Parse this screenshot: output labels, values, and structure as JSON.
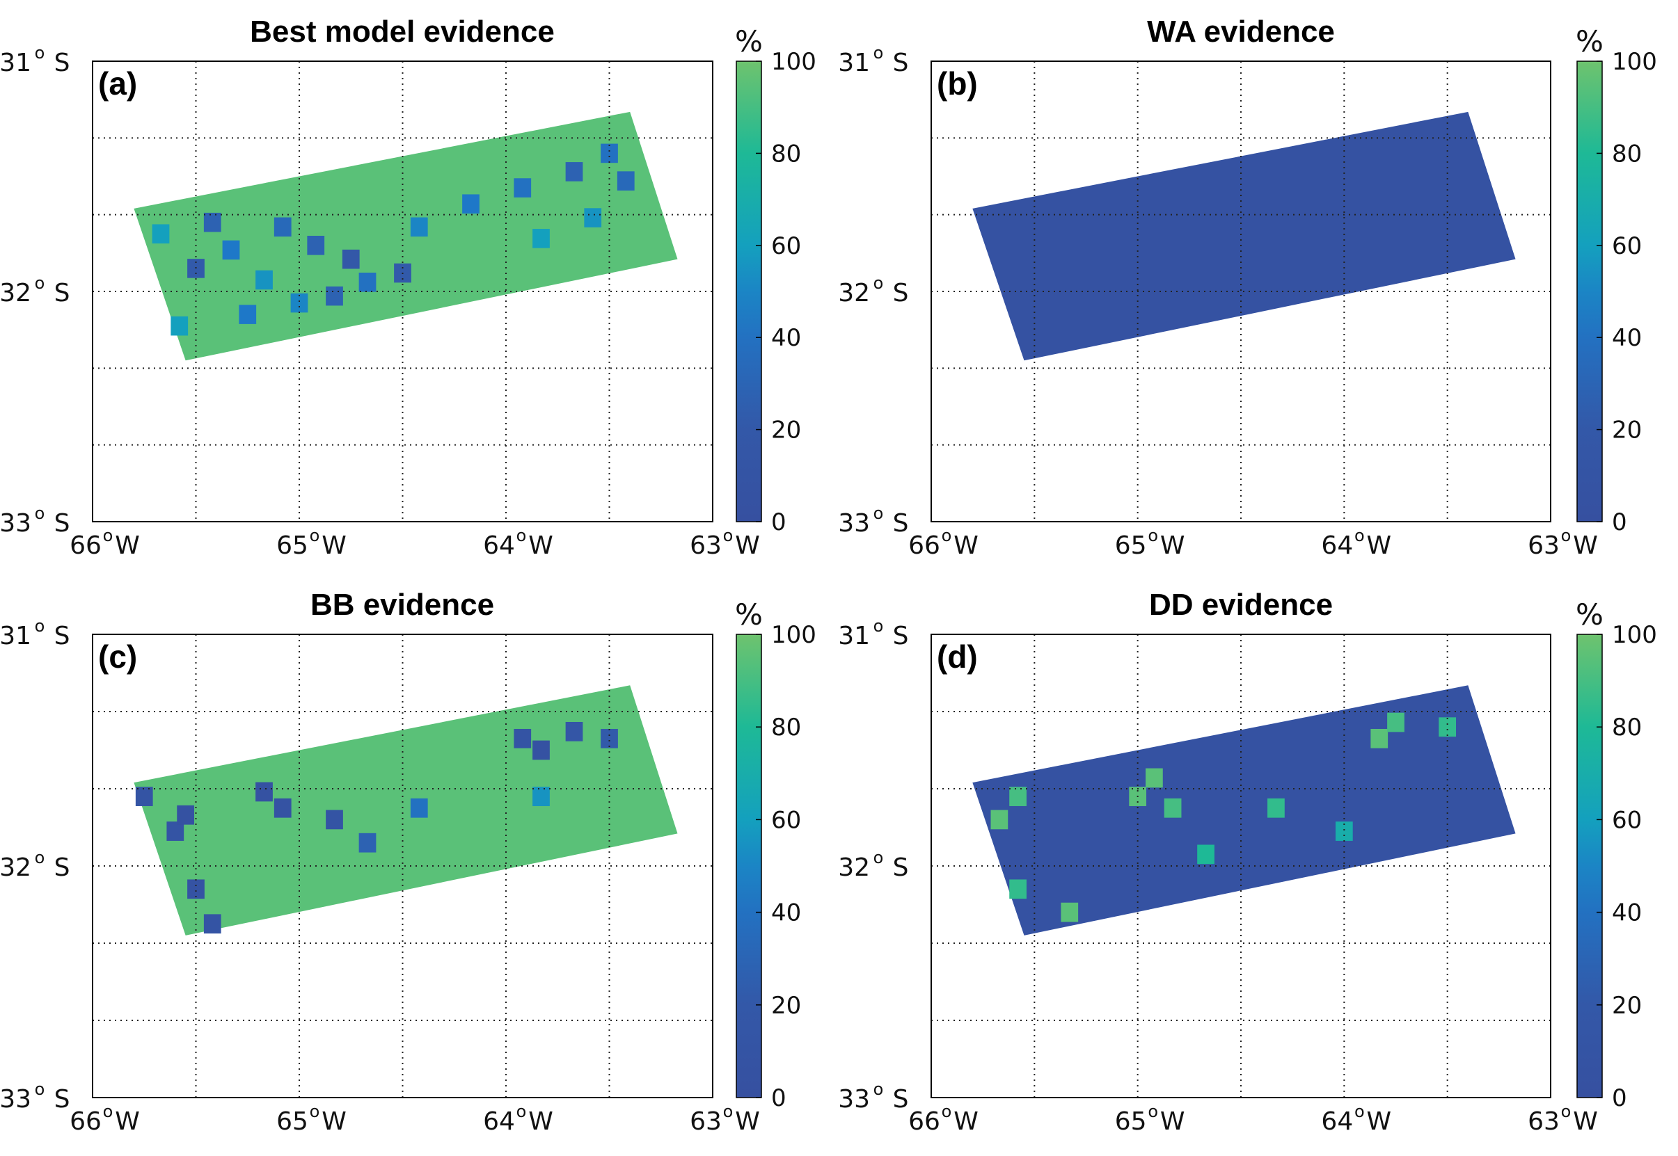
{
  "chart_data": [
    {
      "type": "heatmap",
      "panel_label": "(a)",
      "title": "Best model evidence",
      "xticks": [
        "66",
        "65",
        "64",
        "63"
      ],
      "xtick_suffix": "W",
      "yticks": [
        "31",
        "32",
        "33"
      ],
      "ytick_suffix": "S",
      "xlim": [
        -66,
        -63
      ],
      "ylim": [
        -33,
        -31
      ],
      "colorbar": {
        "unit": "%",
        "ticks": [
          "0",
          "20",
          "40",
          "60",
          "80",
          "100"
        ],
        "range": [
          0,
          100
        ]
      },
      "grid": true,
      "dominant_value": 95,
      "cells": [
        {
          "x": -65.67,
          "y": -31.75,
          "v": 60
        },
        {
          "x": -65.42,
          "y": -31.7,
          "v": 30
        },
        {
          "x": -65.33,
          "y": -31.82,
          "v": 45
        },
        {
          "x": -65.5,
          "y": -31.9,
          "v": 25
        },
        {
          "x": -65.17,
          "y": -31.95,
          "v": 55
        },
        {
          "x": -65.08,
          "y": -31.72,
          "v": 35
        },
        {
          "x": -64.92,
          "y": -31.8,
          "v": 30
        },
        {
          "x": -64.75,
          "y": -31.86,
          "v": 20
        },
        {
          "x": -64.67,
          "y": -31.96,
          "v": 40
        },
        {
          "x": -64.5,
          "y": -31.92,
          "v": 25
        },
        {
          "x": -64.42,
          "y": -31.72,
          "v": 50
        },
        {
          "x": -64.17,
          "y": -31.62,
          "v": 45
        },
        {
          "x": -63.92,
          "y": -31.55,
          "v": 40
        },
        {
          "x": -63.83,
          "y": -31.77,
          "v": 60
        },
        {
          "x": -63.67,
          "y": -31.48,
          "v": 30
        },
        {
          "x": -63.58,
          "y": -31.68,
          "v": 55
        },
        {
          "x": -63.5,
          "y": -31.4,
          "v": 40
        },
        {
          "x": -63.42,
          "y": -31.52,
          "v": 35
        },
        {
          "x": -65.58,
          "y": -32.15,
          "v": 60
        },
        {
          "x": -65.25,
          "y": -32.1,
          "v": 45
        },
        {
          "x": -65.0,
          "y": -32.05,
          "v": 50
        },
        {
          "x": -64.83,
          "y": -32.02,
          "v": 30
        }
      ]
    },
    {
      "type": "heatmap",
      "panel_label": "(b)",
      "title": "WA evidence",
      "xticks": [
        "66",
        "65",
        "64",
        "63"
      ],
      "xtick_suffix": "W",
      "yticks": [
        "31",
        "32",
        "33"
      ],
      "ytick_suffix": "S",
      "xlim": [
        -66,
        -63
      ],
      "ylim": [
        -33,
        -31
      ],
      "colorbar": {
        "unit": "%",
        "ticks": [
          "0",
          "20",
          "40",
          "60",
          "80",
          "100"
        ],
        "range": [
          0,
          100
        ]
      },
      "grid": true,
      "dominant_value": 5,
      "cells": []
    },
    {
      "type": "heatmap",
      "panel_label": "(c)",
      "title": "BB evidence",
      "xticks": [
        "66",
        "65",
        "64",
        "63"
      ],
      "xtick_suffix": "W",
      "yticks": [
        "31",
        "32",
        "33"
      ],
      "ytick_suffix": "S",
      "xlim": [
        -66,
        -63
      ],
      "ylim": [
        -33,
        -31
      ],
      "colorbar": {
        "unit": "%",
        "ticks": [
          "0",
          "20",
          "40",
          "60",
          "80",
          "100"
        ],
        "range": [
          0,
          100
        ]
      },
      "grid": true,
      "dominant_value": 95,
      "cells": [
        {
          "x": -65.75,
          "y": -31.7,
          "v": 10
        },
        {
          "x": -65.6,
          "y": -31.85,
          "v": 10
        },
        {
          "x": -65.55,
          "y": -31.78,
          "v": 5
        },
        {
          "x": -65.5,
          "y": -32.1,
          "v": 8
        },
        {
          "x": -65.42,
          "y": -32.25,
          "v": 10
        },
        {
          "x": -65.17,
          "y": -31.68,
          "v": 5
        },
        {
          "x": -65.08,
          "y": -31.75,
          "v": 8
        },
        {
          "x": -64.83,
          "y": -31.8,
          "v": 10
        },
        {
          "x": -64.67,
          "y": -31.9,
          "v": 30
        },
        {
          "x": -64.42,
          "y": -31.75,
          "v": 40
        },
        {
          "x": -63.92,
          "y": -31.45,
          "v": 10
        },
        {
          "x": -63.83,
          "y": -31.5,
          "v": 5
        },
        {
          "x": -63.67,
          "y": -31.42,
          "v": 15
        },
        {
          "x": -63.5,
          "y": -31.45,
          "v": 25
        },
        {
          "x": -63.83,
          "y": -31.7,
          "v": 55
        }
      ]
    },
    {
      "type": "heatmap",
      "panel_label": "(d)",
      "title": "DD evidence",
      "xticks": [
        "66",
        "65",
        "64",
        "63"
      ],
      "xtick_suffix": "W",
      "yticks": [
        "31",
        "32",
        "33"
      ],
      "ytick_suffix": "S",
      "xlim": [
        -66,
        -63
      ],
      "ylim": [
        -33,
        -31
      ],
      "colorbar": {
        "unit": "%",
        "ticks": [
          "0",
          "20",
          "40",
          "60",
          "80",
          "100"
        ],
        "range": [
          0,
          100
        ]
      },
      "grid": true,
      "dominant_value": 5,
      "cells": [
        {
          "x": -65.67,
          "y": -31.8,
          "v": 95
        },
        {
          "x": -65.58,
          "y": -31.7,
          "v": 90
        },
        {
          "x": -65.58,
          "y": -32.1,
          "v": 85
        },
        {
          "x": -65.33,
          "y": -32.2,
          "v": 95
        },
        {
          "x": -65.0,
          "y": -31.7,
          "v": 95
        },
        {
          "x": -64.92,
          "y": -31.62,
          "v": 95
        },
        {
          "x": -64.83,
          "y": -31.75,
          "v": 90
        },
        {
          "x": -64.67,
          "y": -31.95,
          "v": 80
        },
        {
          "x": -64.33,
          "y": -31.75,
          "v": 85
        },
        {
          "x": -63.83,
          "y": -31.45,
          "v": 95
        },
        {
          "x": -63.75,
          "y": -31.38,
          "v": 90
        },
        {
          "x": -63.5,
          "y": -31.4,
          "v": 85
        },
        {
          "x": -64.0,
          "y": -31.85,
          "v": 70
        }
      ]
    }
  ]
}
